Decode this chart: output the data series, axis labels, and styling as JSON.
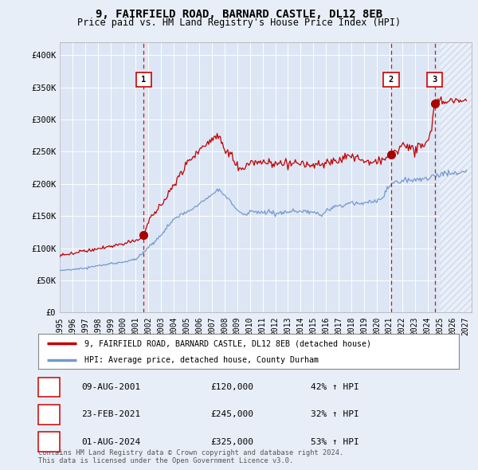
{
  "title": "9, FAIRFIELD ROAD, BARNARD CASTLE, DL12 8EB",
  "subtitle": "Price paid vs. HM Land Registry's House Price Index (HPI)",
  "title_fontsize": 10,
  "subtitle_fontsize": 8.5,
  "background_color": "#e8eef8",
  "plot_bg_color": "#dce6f5",
  "ylim": [
    0,
    420000
  ],
  "yticks": [
    0,
    50000,
    100000,
    150000,
    200000,
    250000,
    300000,
    350000,
    400000
  ],
  "ytick_labels": [
    "£0",
    "£50K",
    "£100K",
    "£150K",
    "£200K",
    "£250K",
    "£300K",
    "£350K",
    "£400K"
  ],
  "legend_property_label": "9, FAIRFIELD ROAD, BARNARD CASTLE, DL12 8EB (detached house)",
  "legend_hpi_label": "HPI: Average price, detached house, County Durham",
  "footer_text": "Contains HM Land Registry data © Crown copyright and database right 2024.\nThis data is licensed under the Open Government Licence v3.0.",
  "transactions": [
    {
      "num": 1,
      "date": "09-AUG-2001",
      "price": 120000,
      "hpi_pct": "42% ↑ HPI",
      "x": 2001.62
    },
    {
      "num": 2,
      "date": "23-FEB-2021",
      "price": 245000,
      "hpi_pct": "32% ↑ HPI",
      "x": 2021.14
    },
    {
      "num": 3,
      "date": "01-AUG-2024",
      "price": 325000,
      "hpi_pct": "53% ↑ HPI",
      "x": 2024.58
    }
  ],
  "future_x_start": 2025.0,
  "xlim": [
    1995.0,
    2027.5
  ],
  "xtick_positions": [
    1995,
    1996,
    1997,
    1998,
    1999,
    2000,
    2001,
    2002,
    2003,
    2004,
    2005,
    2006,
    2007,
    2008,
    2009,
    2010,
    2011,
    2012,
    2013,
    2014,
    2015,
    2016,
    2017,
    2018,
    2019,
    2020,
    2021,
    2022,
    2023,
    2024,
    2025,
    2026,
    2027
  ],
  "line_color_property": "#c00000",
  "line_color_hpi": "#7799cc",
  "future_hatch_color": "#c8d4e8",
  "vline_color": "#cc0000",
  "marker_color": "#aa0000",
  "box_edge_color": "#cc0000"
}
